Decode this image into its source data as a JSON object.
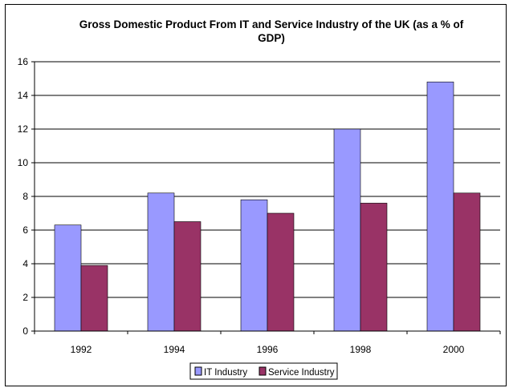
{
  "chart_data": {
    "type": "bar",
    "title_lines": [
      "Gross Domestic Product From IT and Service Industry of the UK (as a % of",
      "GDP)"
    ],
    "categories": [
      "1992",
      "1994",
      "1996",
      "1998",
      "2000"
    ],
    "series": [
      {
        "name": "IT Industry",
        "values": [
          6.3,
          8.2,
          7.8,
          12.0,
          14.8
        ],
        "color": "#9999ff"
      },
      {
        "name": "Service Industry",
        "values": [
          3.9,
          6.5,
          7.0,
          7.6,
          8.2
        ],
        "color": "#993366"
      }
    ],
    "ylim": [
      0,
      16
    ],
    "yticks": [
      "0",
      "2",
      "4",
      "6",
      "8",
      "10",
      "12",
      "14",
      "16"
    ],
    "xlabel": "",
    "ylabel": "",
    "grid": true,
    "legend": "bottom-center"
  }
}
